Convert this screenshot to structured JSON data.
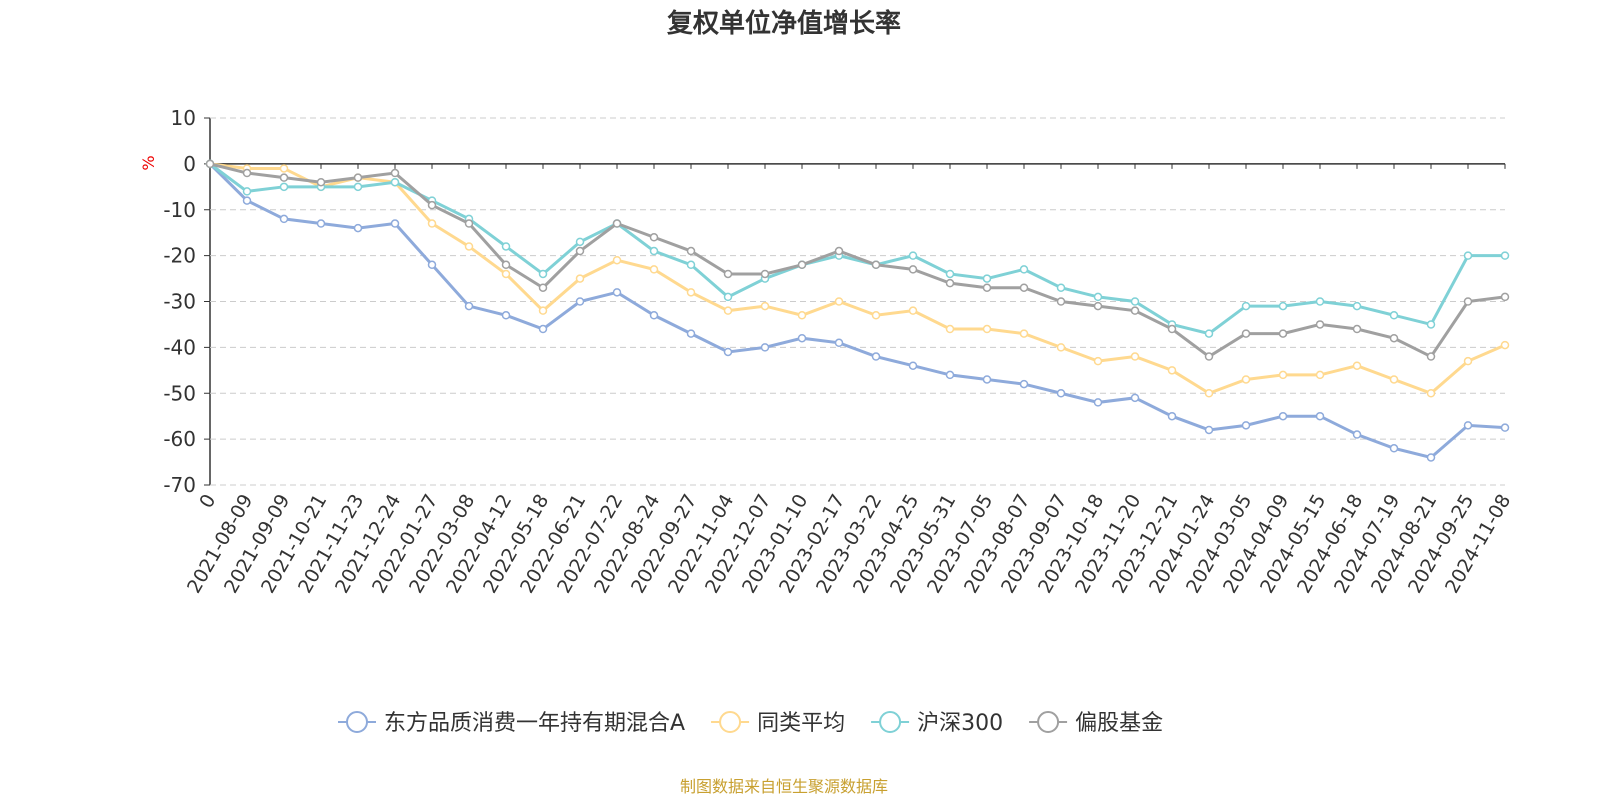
{
  "chart_data": {
    "type": "line",
    "title": "复权单位净值增长率",
    "y_unit": "%",
    "source": "制图数据来自恒生聚源数据库",
    "categories": [
      "0",
      "2021-08-09",
      "2021-09-09",
      "2021-10-21",
      "2021-11-23",
      "2021-12-24",
      "2022-01-27",
      "2022-03-08",
      "2022-04-12",
      "2022-05-18",
      "2022-06-21",
      "2022-07-22",
      "2022-08-24",
      "2022-09-27",
      "2022-11-04",
      "2022-12-07",
      "2023-01-10",
      "2023-02-17",
      "2023-03-22",
      "2023-04-25",
      "2023-05-31",
      "2023-07-05",
      "2023-08-07",
      "2023-09-07",
      "2023-10-18",
      "2023-11-20",
      "2023-12-21",
      "2024-01-24",
      "2024-03-05",
      "2024-04-09",
      "2024-05-15",
      "2024-06-18",
      "2024-07-19",
      "2024-08-21",
      "2024-09-25",
      "2024-11-08"
    ],
    "series": [
      {
        "name": "东方品质消费一年持有期混合A",
        "color": "#8eaadb",
        "values": [
          0,
          -8,
          -12,
          -13,
          -14,
          -13,
          -22,
          -31,
          -33,
          -36,
          -30,
          -28,
          -33,
          -37,
          -41,
          -40,
          -38,
          -39,
          -42,
          -44,
          -46,
          -47,
          -48,
          -50,
          -52,
          -51,
          -55,
          -58,
          -57,
          -55,
          -55,
          -59,
          -62,
          -64,
          -57,
          -57.5
        ]
      },
      {
        "name": "同类平均",
        "color": "#ffd98f",
        "values": [
          0,
          -1,
          -1,
          -5,
          -3,
          -4,
          -13,
          -18,
          -24,
          -32,
          -25,
          -21,
          -23,
          -28,
          -32,
          -31,
          -33,
          -30,
          -33,
          -32,
          -36,
          -36,
          -37,
          -40,
          -43,
          -42,
          -45,
          -50,
          -47,
          -46,
          -46,
          -44,
          -47,
          -50,
          -43,
          -39.5
        ]
      },
      {
        "name": "沪深300",
        "color": "#7fd1d6",
        "values": [
          0,
          -6,
          -5,
          -5,
          -5,
          -4,
          -8,
          -12,
          -18,
          -24,
          -17,
          -13,
          -19,
          -22,
          -29,
          -25,
          -22,
          -20,
          -22,
          -20,
          -24,
          -25,
          -23,
          -27,
          -29,
          -30,
          -35,
          -37,
          -31,
          -31,
          -30,
          -31,
          -33,
          -35,
          -20,
          -20
        ]
      },
      {
        "name": "偏股基金",
        "color": "#a0a0a0",
        "values": [
          0,
          -2,
          -3,
          -4,
          -3,
          -2,
          -9,
          -13,
          -22,
          -27,
          -19,
          -13,
          -16,
          -19,
          -24,
          -24,
          -22,
          -19,
          -22,
          -23,
          -26,
          -27,
          -27,
          -30,
          -31,
          -32,
          -36,
          -42,
          -37,
          -37,
          -35,
          -36,
          -38,
          -42,
          -30,
          -29
        ]
      }
    ],
    "ylim": [
      -70,
      10
    ],
    "yticks": [
      10,
      0,
      -10,
      -20,
      -30,
      -40,
      -50,
      -60,
      -70
    ],
    "grid": true
  }
}
